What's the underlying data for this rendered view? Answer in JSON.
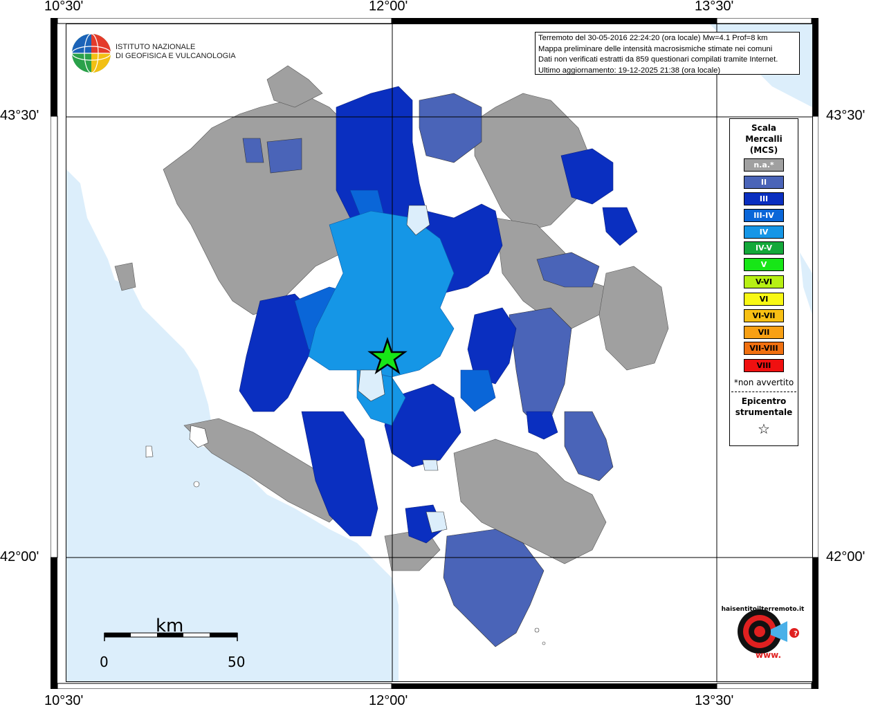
{
  "ticks": {
    "top": [
      "10°30'",
      "12°00'",
      "13°30'"
    ],
    "bottom": [
      "10°30'",
      "12°00'",
      "13°30'"
    ],
    "left": [
      "43°30'",
      "42°00'"
    ],
    "right": [
      "43°30'",
      "42°00'"
    ]
  },
  "header": {
    "logo_line1": "ISTITUTO NAZIONALE",
    "logo_line2": "DI GEOFISICA E VULCANOLOGIA",
    "info_lines": [
      "Terremoto del 30-05-2016 22:24:20 (ora locale) Mw=4.1 Prof=8 km",
      "Mappa preliminare delle intensità macrosismiche stimate nei comuni",
      "Dati non verificati estratti da 859 questionari compilati tramite Internet.",
      "Ultimo aggiornamento: 19-12-2025 21:38 (ora locale)"
    ]
  },
  "legend": {
    "title1": "Scala",
    "title2": "Mercalli",
    "title3": "(MCS)",
    "items": [
      {
        "label": "n.a.*",
        "color": "#a0a0a0"
      },
      {
        "label": "II",
        "color": "#4a64b8"
      },
      {
        "label": "III",
        "color": "#0a2fc0"
      },
      {
        "label": "III-IV",
        "color": "#0a66d8"
      },
      {
        "label": "IV",
        "color": "#1596e6"
      },
      {
        "label": "IV-V",
        "color": "#14a83a"
      },
      {
        "label": "V",
        "color": "#17e617"
      },
      {
        "label": "V-VI",
        "color": "#b7f014"
      },
      {
        "label": "VI",
        "color": "#f8f814"
      },
      {
        "label": "VI-VII",
        "color": "#f8c014"
      },
      {
        "label": "VII",
        "color": "#f8a014"
      },
      {
        "label": "VII-VIII",
        "color": "#f07010"
      },
      {
        "label": "VIII",
        "color": "#f01010"
      }
    ],
    "note": "*non avvertito",
    "epicenter_line1": "Epicentro",
    "epicenter_line2": "strumentale",
    "epicenter_symbol": "☆"
  },
  "scalebar": {
    "title": "km",
    "start": "0",
    "end": "50"
  },
  "brand": {
    "line1": "haisentitoilterremoto.it",
    "line2": "www."
  },
  "colors": {
    "sea": "#dceefb",
    "na": "#a0a0a0",
    "II": "#4a64b8",
    "III": "#0a2fc0",
    "III-IV": "#0a66d8",
    "IV": "#1596e6"
  }
}
